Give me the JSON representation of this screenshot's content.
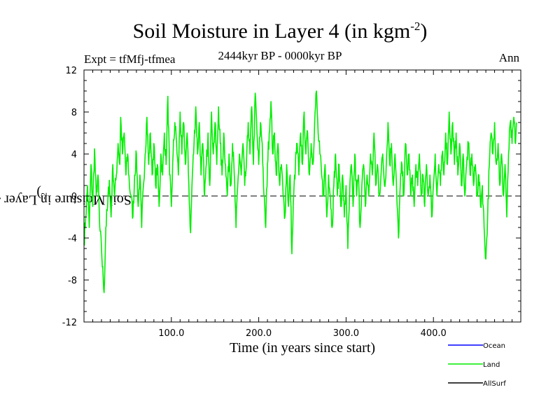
{
  "chart_data": {
    "type": "line",
    "title_main": "Soil Moisture in Layer 4 (in kgm",
    "title_exp": "-2",
    "title_close": ")",
    "subtitle": "2444kyr BP - 0000kyr BP",
    "expt_label": "Expt = tfMfj-tfmea",
    "season": "Ann",
    "xlabel": "Time (in years since start)",
    "ylabel_main": "Soil Moisture in Layer 4 (in kgm",
    "ylabel_exp": "-2",
    "ylabel_close": ")",
    "xlim": [
      0,
      500
    ],
    "ylim": [
      -12,
      12
    ],
    "xticks": [
      100,
      200,
      300,
      400
    ],
    "xtick_labels": [
      "100.0",
      "200.0",
      "300.0",
      "400.0"
    ],
    "yticks": [
      -12,
      -8,
      -4,
      0,
      4,
      8,
      12
    ],
    "ytick_labels": [
      "-12",
      "-8",
      "-4",
      "0",
      "4",
      "8",
      "12"
    ],
    "reference_line": 0,
    "legend": [
      {
        "name": "Ocean",
        "color": "#0000ff"
      },
      {
        "name": "Land",
        "color": "#00ee00"
      },
      {
        "name": "AllSurf",
        "color": "#000000"
      }
    ],
    "series": [
      {
        "name": "Land",
        "color": "#00ee00",
        "keypoints": [
          [
            0,
            -4.5
          ],
          [
            2,
            -2
          ],
          [
            4,
            1
          ],
          [
            6,
            -3
          ],
          [
            8,
            3
          ],
          [
            10,
            -1
          ],
          [
            12,
            4.5
          ],
          [
            14,
            0
          ],
          [
            16,
            2
          ],
          [
            18,
            -3
          ],
          [
            20,
            -5
          ],
          [
            22,
            -8
          ],
          [
            23,
            -9.2
          ],
          [
            25,
            -3
          ],
          [
            27,
            -1
          ],
          [
            29,
            1.5
          ],
          [
            31,
            -2
          ],
          [
            33,
            3
          ],
          [
            35,
            0
          ],
          [
            37,
            2
          ],
          [
            39,
            5
          ],
          [
            41,
            3
          ],
          [
            42,
            7.5
          ],
          [
            44,
            4
          ],
          [
            46,
            6
          ],
          [
            48,
            2
          ],
          [
            50,
            4
          ],
          [
            52,
            1
          ],
          [
            54,
            0
          ],
          [
            56,
            -2
          ],
          [
            58,
            2
          ],
          [
            60,
            4
          ],
          [
            62,
            -1
          ],
          [
            64,
            2
          ],
          [
            66,
            -3
          ],
          [
            68,
            1
          ],
          [
            70,
            4
          ],
          [
            72,
            7.5
          ],
          [
            74,
            3
          ],
          [
            76,
            6
          ],
          [
            78,
            2
          ],
          [
            80,
            5
          ],
          [
            82,
            1
          ],
          [
            84,
            3
          ],
          [
            86,
            -1
          ],
          [
            88,
            4
          ],
          [
            90,
            2
          ],
          [
            92,
            6
          ],
          [
            94,
            3
          ],
          [
            96,
            9.5
          ],
          [
            98,
            2
          ],
          [
            100,
            -1
          ],
          [
            102,
            4
          ],
          [
            104,
            7
          ],
          [
            106,
            5
          ],
          [
            108,
            2
          ],
          [
            110,
            8
          ],
          [
            112,
            4
          ],
          [
            114,
            7
          ],
          [
            116,
            3
          ],
          [
            118,
            6
          ],
          [
            120,
            1
          ],
          [
            122,
            -3.5
          ],
          [
            124,
            2
          ],
          [
            126,
            5
          ],
          [
            128,
            8.5
          ],
          [
            130,
            4
          ],
          [
            132,
            7
          ],
          [
            134,
            2
          ],
          [
            136,
            5
          ],
          [
            138,
            0
          ],
          [
            140,
            3
          ],
          [
            142,
            6
          ],
          [
            144,
            1
          ],
          [
            146,
            8
          ],
          [
            148,
            4
          ],
          [
            150,
            7
          ],
          [
            152,
            3
          ],
          [
            154,
            8.5
          ],
          [
            156,
            5
          ],
          [
            158,
            2
          ],
          [
            160,
            6
          ],
          [
            162,
            3
          ],
          [
            164,
            0
          ],
          [
            166,
            4
          ],
          [
            168,
            1
          ],
          [
            170,
            5
          ],
          [
            172,
            2
          ],
          [
            174,
            -3
          ],
          [
            176,
            1
          ],
          [
            178,
            4
          ],
          [
            180,
            2
          ],
          [
            182,
            5
          ],
          [
            184,
            1
          ],
          [
            186,
            3
          ],
          [
            188,
            7
          ],
          [
            190,
            4
          ],
          [
            192,
            8.5
          ],
          [
            194,
            3
          ],
          [
            196,
            9.8
          ],
          [
            198,
            6
          ],
          [
            200,
            3
          ],
          [
            202,
            7
          ],
          [
            204,
            5
          ],
          [
            206,
            0
          ],
          [
            208,
            -3
          ],
          [
            210,
            3
          ],
          [
            212,
            6
          ],
          [
            214,
            9
          ],
          [
            216,
            4
          ],
          [
            218,
            6
          ],
          [
            220,
            2
          ],
          [
            222,
            5
          ],
          [
            224,
            1
          ],
          [
            226,
            3
          ],
          [
            228,
            0
          ],
          [
            230,
            -2
          ],
          [
            232,
            3
          ],
          [
            234,
            -1
          ],
          [
            236,
            2
          ],
          [
            238,
            -5.5
          ],
          [
            240,
            0
          ],
          [
            242,
            3
          ],
          [
            244,
            5
          ],
          [
            246,
            2
          ],
          [
            248,
            6
          ],
          [
            250,
            3
          ],
          [
            252,
            8
          ],
          [
            254,
            4
          ],
          [
            256,
            6
          ],
          [
            258,
            2
          ],
          [
            260,
            5
          ],
          [
            262,
            3
          ],
          [
            264,
            7
          ],
          [
            266,
            10
          ],
          [
            268,
            6
          ],
          [
            270,
            4
          ],
          [
            272,
            2
          ],
          [
            274,
            0
          ],
          [
            276,
            3
          ],
          [
            278,
            -2
          ],
          [
            280,
            2
          ],
          [
            282,
            0
          ],
          [
            284,
            -3
          ],
          [
            286,
            1
          ],
          [
            288,
            4
          ],
          [
            290,
            0
          ],
          [
            292,
            3
          ],
          [
            294,
            -1
          ],
          [
            296,
            2
          ],
          [
            298,
            -2
          ],
          [
            300,
            1
          ],
          [
            302,
            -5
          ],
          [
            304,
            0
          ],
          [
            306,
            3
          ],
          [
            308,
            -1
          ],
          [
            310,
            4
          ],
          [
            312,
            0
          ],
          [
            314,
            2
          ],
          [
            316,
            -3
          ],
          [
            318,
            1
          ],
          [
            320,
            3
          ],
          [
            322,
            -1
          ],
          [
            324,
            2
          ],
          [
            326,
            0
          ],
          [
            328,
            4
          ],
          [
            330,
            2
          ],
          [
            332,
            6
          ],
          [
            334,
            1
          ],
          [
            336,
            3
          ],
          [
            338,
            0
          ],
          [
            340,
            2
          ],
          [
            342,
            4
          ],
          [
            344,
            1
          ],
          [
            346,
            3
          ],
          [
            348,
            7
          ],
          [
            350,
            3
          ],
          [
            352,
            5
          ],
          [
            354,
            1
          ],
          [
            356,
            4
          ],
          [
            358,
            0
          ],
          [
            360,
            -4
          ],
          [
            362,
            1
          ],
          [
            364,
            3
          ],
          [
            366,
            0
          ],
          [
            368,
            5
          ],
          [
            370,
            2
          ],
          [
            372,
            4
          ],
          [
            374,
            0
          ],
          [
            376,
            2
          ],
          [
            378,
            -1
          ],
          [
            380,
            3
          ],
          [
            382,
            1
          ],
          [
            384,
            4
          ],
          [
            386,
            0
          ],
          [
            388,
            2
          ],
          [
            390,
            -1
          ],
          [
            392,
            3
          ],
          [
            394,
            0
          ],
          [
            396,
            2
          ],
          [
            398,
            -2
          ],
          [
            400,
            1
          ],
          [
            402,
            4
          ],
          [
            404,
            0
          ],
          [
            406,
            3
          ],
          [
            408,
            1
          ],
          [
            410,
            4
          ],
          [
            412,
            2
          ],
          [
            414,
            6
          ],
          [
            416,
            3
          ],
          [
            418,
            8
          ],
          [
            420,
            4
          ],
          [
            422,
            7
          ],
          [
            424,
            3
          ],
          [
            426,
            6
          ],
          [
            428,
            2
          ],
          [
            430,
            5
          ],
          [
            432,
            1
          ],
          [
            434,
            4
          ],
          [
            436,
            0
          ],
          [
            438,
            3
          ],
          [
            440,
            5
          ],
          [
            442,
            2
          ],
          [
            444,
            4
          ],
          [
            446,
            1
          ],
          [
            448,
            3
          ],
          [
            450,
            0
          ],
          [
            452,
            2
          ],
          [
            454,
            -1
          ],
          [
            456,
            1
          ],
          [
            458,
            -3
          ],
          [
            460,
            -6
          ],
          [
            462,
            -2
          ],
          [
            464,
            3
          ],
          [
            466,
            6
          ],
          [
            468,
            4
          ],
          [
            470,
            7
          ],
          [
            472,
            3
          ],
          [
            474,
            5
          ],
          [
            476,
            1
          ],
          [
            478,
            4
          ],
          [
            480,
            0
          ],
          [
            482,
            3
          ],
          [
            484,
            -2
          ],
          [
            486,
            4
          ],
          [
            488,
            7
          ],
          [
            490,
            5
          ],
          [
            492,
            7.5
          ],
          [
            494,
            5
          ],
          [
            495,
            7
          ]
        ]
      }
    ]
  }
}
